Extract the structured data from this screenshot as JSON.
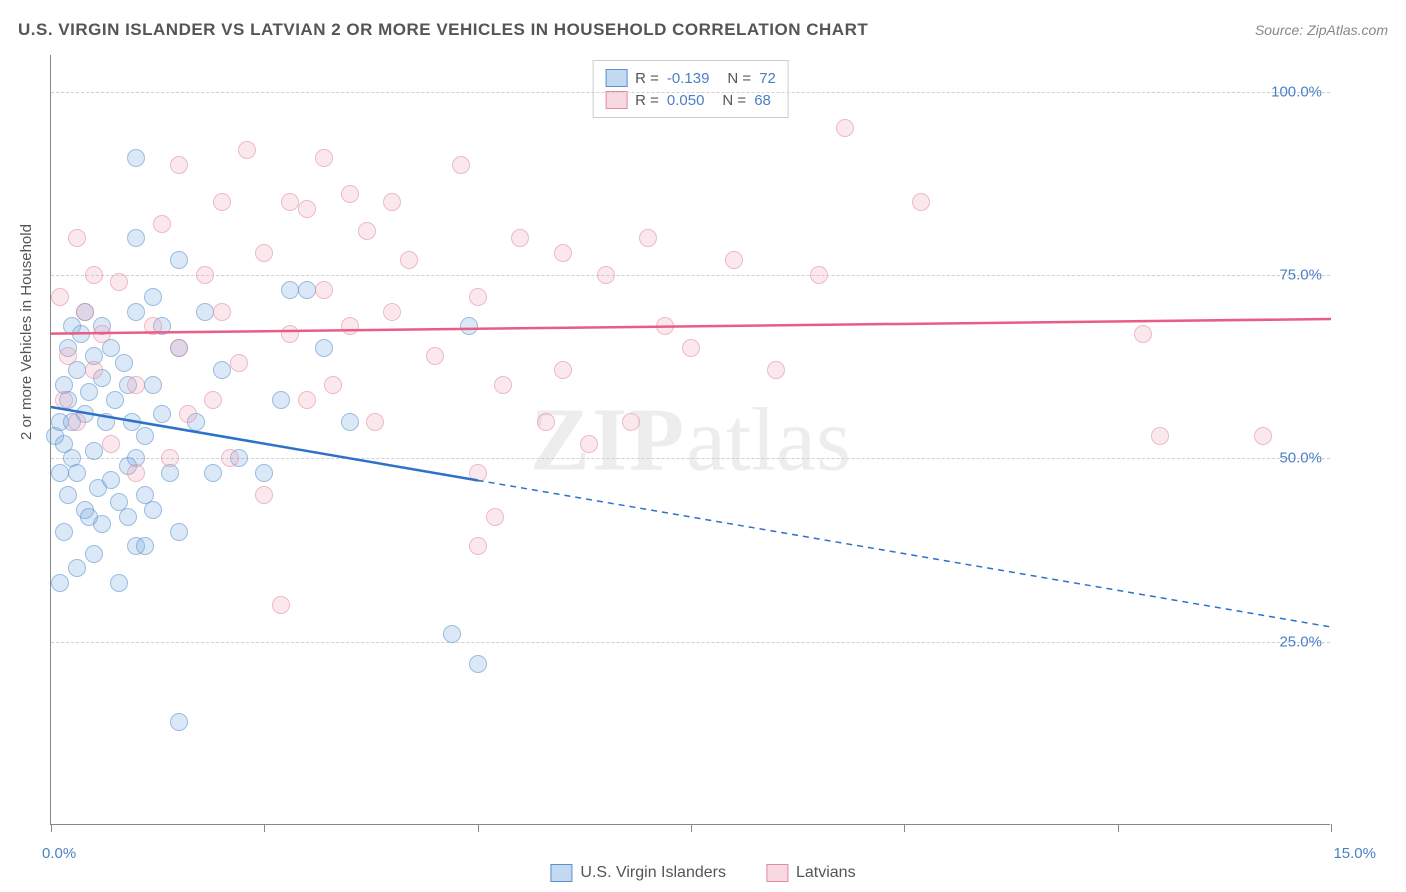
{
  "title": "U.S. VIRGIN ISLANDER VS LATVIAN 2 OR MORE VEHICLES IN HOUSEHOLD CORRELATION CHART",
  "source": "Source: ZipAtlas.com",
  "ylabel": "2 or more Vehicles in Household",
  "watermark_bold": "ZIP",
  "watermark_light": "atlas",
  "chart": {
    "type": "scatter",
    "xlim": [
      0,
      15
    ],
    "ylim": [
      0,
      105
    ],
    "xtick_positions": [
      0,
      2.5,
      5,
      7.5,
      10,
      12.5,
      15
    ],
    "xtick_labels_shown": {
      "0": "0.0%",
      "15": "15.0%"
    },
    "ytick_positions": [
      25,
      50,
      75,
      100
    ],
    "ytick_labels": [
      "25.0%",
      "50.0%",
      "75.0%",
      "100.0%"
    ],
    "grid_color": "#d0d0d0",
    "background_color": "#ffffff",
    "axis_color": "#888888",
    "tick_label_color": "#4a7fc4",
    "marker_radius": 9,
    "marker_opacity": 0.6,
    "series": [
      {
        "name": "U.S. Virgin Islanders",
        "color_fill": "rgba(120,170,225,0.45)",
        "color_stroke": "#5a90cb",
        "R": "-0.139",
        "N": "72",
        "regression": {
          "x1": 0,
          "y1": 57,
          "x2": 5,
          "y2": 47,
          "extrap_x2": 15,
          "extrap_y2": 27,
          "stroke": "#2d72c9",
          "width": 2.5
        },
        "points": [
          [
            0.05,
            53
          ],
          [
            0.1,
            55
          ],
          [
            0.1,
            48
          ],
          [
            0.15,
            60
          ],
          [
            0.15,
            52
          ],
          [
            0.2,
            65
          ],
          [
            0.2,
            58
          ],
          [
            0.2,
            45
          ],
          [
            0.25,
            55
          ],
          [
            0.25,
            50
          ],
          [
            0.3,
            62
          ],
          [
            0.3,
            48
          ],
          [
            0.35,
            67
          ],
          [
            0.4,
            56
          ],
          [
            0.4,
            43
          ],
          [
            0.45,
            59
          ],
          [
            0.5,
            64
          ],
          [
            0.5,
            51
          ],
          [
            0.55,
            46
          ],
          [
            0.6,
            61
          ],
          [
            0.6,
            41
          ],
          [
            0.65,
            55
          ],
          [
            0.7,
            47
          ],
          [
            0.75,
            58
          ],
          [
            0.8,
            44
          ],
          [
            0.85,
            63
          ],
          [
            0.9,
            49
          ],
          [
            0.9,
            42
          ],
          [
            0.95,
            55
          ],
          [
            1.0,
            91
          ],
          [
            1.0,
            80
          ],
          [
            1.0,
            70
          ],
          [
            1.0,
            38
          ],
          [
            1.1,
            53
          ],
          [
            1.1,
            45
          ],
          [
            1.2,
            72
          ],
          [
            1.2,
            60
          ],
          [
            1.2,
            43
          ],
          [
            1.3,
            56
          ],
          [
            1.4,
            48
          ],
          [
            1.5,
            77
          ],
          [
            1.5,
            65
          ],
          [
            1.5,
            14
          ],
          [
            1.5,
            40
          ],
          [
            1.7,
            55
          ],
          [
            1.8,
            70
          ],
          [
            1.9,
            48
          ],
          [
            2.0,
            62
          ],
          [
            2.2,
            50
          ],
          [
            2.5,
            48
          ],
          [
            2.7,
            58
          ],
          [
            2.8,
            73
          ],
          [
            3.0,
            73
          ],
          [
            3.2,
            65
          ],
          [
            3.5,
            55
          ],
          [
            0.1,
            33
          ],
          [
            0.8,
            33
          ],
          [
            4.7,
            26
          ],
          [
            5.0,
            22
          ],
          [
            4.9,
            68
          ],
          [
            0.4,
            70
          ],
          [
            0.15,
            40
          ],
          [
            0.3,
            35
          ],
          [
            0.5,
            37
          ],
          [
            0.25,
            68
          ],
          [
            0.6,
            68
          ],
          [
            1.3,
            68
          ],
          [
            1.0,
            50
          ],
          [
            0.45,
            42
          ],
          [
            0.7,
            65
          ],
          [
            0.9,
            60
          ],
          [
            1.1,
            38
          ]
        ]
      },
      {
        "name": "Latvians",
        "color_fill": "rgba(240,160,180,0.40)",
        "color_stroke": "#e28ba1",
        "R": "0.050",
        "N": "68",
        "regression": {
          "x1": 0,
          "y1": 67,
          "x2": 15,
          "y2": 69,
          "stroke": "#e95d84",
          "width": 2.5
        },
        "points": [
          [
            0.15,
            58
          ],
          [
            0.2,
            64
          ],
          [
            0.3,
            55
          ],
          [
            0.4,
            70
          ],
          [
            0.5,
            62
          ],
          [
            0.6,
            67
          ],
          [
            0.8,
            74
          ],
          [
            1.0,
            60
          ],
          [
            1.2,
            68
          ],
          [
            1.3,
            82
          ],
          [
            1.5,
            90
          ],
          [
            1.5,
            65
          ],
          [
            1.6,
            56
          ],
          [
            1.8,
            75
          ],
          [
            2.0,
            85
          ],
          [
            2.0,
            70
          ],
          [
            2.2,
            63
          ],
          [
            2.3,
            92
          ],
          [
            2.5,
            78
          ],
          [
            2.5,
            45
          ],
          [
            2.7,
            30
          ],
          [
            2.8,
            67
          ],
          [
            3.0,
            84
          ],
          [
            3.0,
            58
          ],
          [
            3.2,
            91
          ],
          [
            3.2,
            73
          ],
          [
            3.3,
            60
          ],
          [
            3.5,
            86
          ],
          [
            3.5,
            68
          ],
          [
            3.7,
            81
          ],
          [
            3.8,
            55
          ],
          [
            4.0,
            70
          ],
          [
            4.2,
            77
          ],
          [
            4.5,
            64
          ],
          [
            4.8,
            90
          ],
          [
            5.0,
            48
          ],
          [
            5.0,
            72
          ],
          [
            5.2,
            42
          ],
          [
            5.3,
            60
          ],
          [
            5.5,
            80
          ],
          [
            5.8,
            55
          ],
          [
            6.0,
            78
          ],
          [
            6.0,
            62
          ],
          [
            6.3,
            52
          ],
          [
            6.5,
            75
          ],
          [
            7.0,
            80
          ],
          [
            7.2,
            68
          ],
          [
            7.5,
            65
          ],
          [
            8.0,
            77
          ],
          [
            8.5,
            62
          ],
          [
            9.0,
            75
          ],
          [
            9.3,
            95
          ],
          [
            10.2,
            85
          ],
          [
            12.8,
            67
          ],
          [
            13.0,
            53
          ],
          [
            14.2,
            53
          ],
          [
            5.0,
            38
          ],
          [
            0.1,
            72
          ],
          [
            0.5,
            75
          ],
          [
            0.3,
            80
          ],
          [
            2.8,
            85
          ],
          [
            1.9,
            58
          ],
          [
            4.0,
            85
          ],
          [
            6.8,
            55
          ],
          [
            1.0,
            48
          ],
          [
            0.7,
            52
          ],
          [
            1.4,
            50
          ],
          [
            2.1,
            50
          ]
        ]
      }
    ]
  },
  "legend_bottom": [
    {
      "swatch": "blue",
      "label": "U.S. Virgin Islanders"
    },
    {
      "swatch": "pink",
      "label": "Latvians"
    }
  ]
}
